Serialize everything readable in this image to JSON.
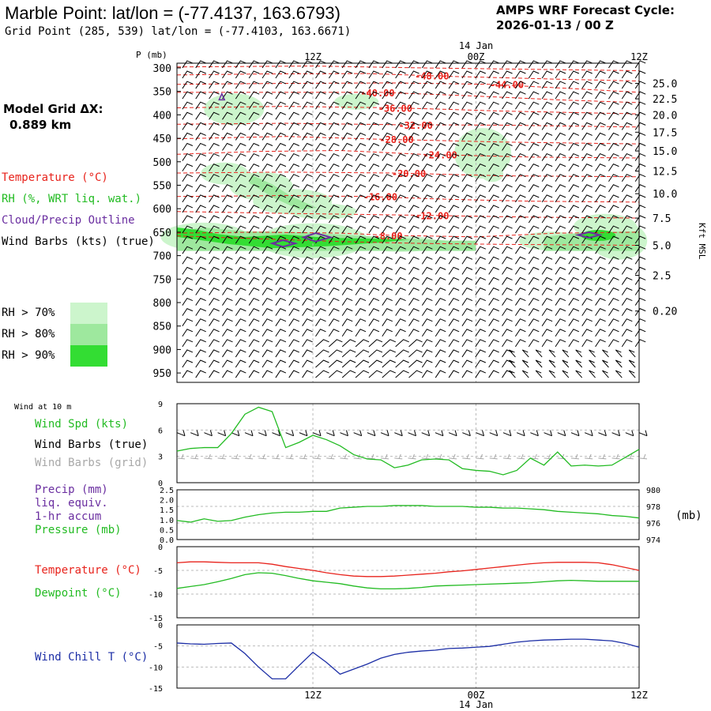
{
  "header": {
    "title": "Marble Point:  lat/lon = (-77.4137, 163.6793)",
    "subtitle": "Grid Point (285, 539) lat/lon = (-77.4103, 163.6671)",
    "cycle_line1": "AMPS WRF Forecast Cycle:",
    "cycle_line2": "2026-01-13 / 00  Z",
    "model_grid_line1": "Model Grid ΔX:",
    "model_grid_line2": "0.889 km"
  },
  "legend": {
    "temperature": "Temperature (°C)",
    "rh": "RH (%, WRT liq. wat.)",
    "cloud": "Cloud/Precip Outline",
    "barbs": "Wind Barbs (kts) (true)",
    "rh70": "RH > 70%",
    "rh80": "RH > 80%",
    "rh90": "RH > 90%",
    "wind10m": "Wind at 10 m",
    "wind_spd": "Wind Spd (kts)",
    "wind_barbs_true": "Wind Barbs (true)",
    "wind_barbs_grid": "Wind Barbs (grid)",
    "precip1": "Precip (mm)",
    "precip2": "liq. equiv.",
    "precip3": "1-hr accum",
    "pressure": "Pressure (mb)",
    "temp2m": "Temperature (°C)",
    "dewpoint": "Dewpoint (°C)",
    "windchill": "Wind Chill T (°C)"
  },
  "colors": {
    "temperature": "#e8231c",
    "rh": "#22bb22",
    "cloud": "#6a2ea0",
    "grid_barbs": "#a8a8a8",
    "windchill": "#1c2ea6",
    "rh70": "#ccf5cc",
    "rh80": "#9ee89e",
    "rh90": "#33dd33"
  },
  "chart_data": [
    {
      "type": "contour",
      "name": "cross-section",
      "y_title": "P (mb)",
      "right_axis_title": "Kft MSL",
      "pressure_ticks": [
        300,
        350,
        400,
        450,
        500,
        550,
        600,
        650,
        700,
        750,
        800,
        850,
        900,
        950
      ],
      "kft_ticks": [
        {
          "label": "25.0",
          "p": 333
        },
        {
          "label": "22.5",
          "p": 366
        },
        {
          "label": "20.0",
          "p": 400
        },
        {
          "label": "17.5",
          "p": 437
        },
        {
          "label": "15.0",
          "p": 477
        },
        {
          "label": "12.5",
          "p": 520
        },
        {
          "label": "10.0",
          "p": 568
        },
        {
          "label": "7.5",
          "p": 620
        },
        {
          "label": "5.0",
          "p": 678
        },
        {
          "label": "2.5",
          "p": 742
        },
        {
          "label": "0.20",
          "p": 818
        }
      ],
      "x_top_labels": [
        {
          "label": "12Z",
          "t": 12
        },
        {
          "label": "14 Jan",
          "t": 24,
          "upper": true
        },
        {
          "label": "00Z",
          "t": 24
        },
        {
          "label": "12Z",
          "t": 36
        }
      ],
      "temperature_labels": [
        {
          "label": "-48.00",
          "t": 19.5,
          "p": 316
        },
        {
          "label": "-44.00",
          "t": 25.0,
          "p": 335
        },
        {
          "label": "-40.00",
          "t": 15.5,
          "p": 352
        },
        {
          "label": "-36.00",
          "t": 16.8,
          "p": 385
        },
        {
          "label": "-32.00",
          "t": 18.3,
          "p": 421
        },
        {
          "label": "-28.00",
          "t": 16.9,
          "p": 452
        },
        {
          "label": "-24.00",
          "t": 20.1,
          "p": 484
        },
        {
          "label": "-20.00",
          "t": 17.8,
          "p": 524
        },
        {
          "label": "-16.00",
          "t": 15.7,
          "p": 574
        },
        {
          "label": "-12.00",
          "t": 19.5,
          "p": 614
        },
        {
          "label": "-8.00",
          "t": 16.5,
          "p": 657
        }
      ]
    },
    {
      "type": "line",
      "name": "wind-speed-10m",
      "ylim": [
        0,
        9
      ],
      "yticks": [
        0,
        3,
        6,
        9
      ],
      "x": [
        2,
        3,
        4,
        5,
        6,
        7,
        8,
        9,
        10,
        11,
        12,
        13,
        14,
        15,
        16,
        17,
        18,
        19,
        20,
        21,
        22,
        23,
        24,
        25,
        26,
        27,
        28,
        29,
        30,
        31,
        32,
        33,
        34,
        35,
        36
      ],
      "wind_speed": [
        3.6,
        3.9,
        4.0,
        4.0,
        5.6,
        7.8,
        8.6,
        8.1,
        4.0,
        4.6,
        5.4,
        4.9,
        4.2,
        3.2,
        2.7,
        2.6,
        1.7,
        2.0,
        2.6,
        2.7,
        2.6,
        1.6,
        1.4,
        1.3,
        0.9,
        1.4,
        2.8,
        2.0,
        3.5,
        1.9,
        2.0,
        1.9,
        2.0,
        2.9,
        3.8
      ]
    },
    {
      "type": "line",
      "name": "pressure-precip",
      "ylim_precip": [
        0,
        2.5
      ],
      "precip_ticks": [
        "0.0",
        "0.5",
        "1.0",
        "1.5",
        "2.0",
        "2.5"
      ],
      "ylim_pressure": [
        974,
        980
      ],
      "pressure_ticks": [
        974,
        976,
        978,
        980
      ],
      "x": [
        2,
        3,
        4,
        5,
        6,
        7,
        8,
        9,
        10,
        11,
        12,
        13,
        14,
        15,
        16,
        17,
        18,
        19,
        20,
        21,
        22,
        23,
        24,
        25,
        26,
        27,
        28,
        29,
        30,
        31,
        32,
        33,
        34,
        35,
        36
      ],
      "pressure": [
        976.3,
        976.1,
        976.5,
        976.2,
        976.3,
        976.7,
        977.0,
        977.2,
        977.3,
        977.3,
        977.4,
        977.4,
        977.8,
        977.9,
        978.0,
        978.0,
        978.1,
        978.1,
        978.1,
        978.0,
        978.0,
        978.0,
        977.9,
        977.9,
        977.8,
        977.8,
        977.7,
        977.6,
        977.4,
        977.3,
        977.2,
        977.1,
        976.9,
        976.8,
        976.6
      ]
    },
    {
      "type": "line",
      "name": "temperature-dewpoint",
      "ylim": [
        -15,
        0
      ],
      "yticks": [
        -15,
        -10,
        -5,
        0
      ],
      "x": [
        2,
        3,
        4,
        5,
        6,
        7,
        8,
        9,
        10,
        11,
        12,
        13,
        14,
        15,
        16,
        17,
        18,
        19,
        20,
        21,
        22,
        23,
        24,
        25,
        26,
        27,
        28,
        29,
        30,
        31,
        32,
        33,
        34,
        35,
        36
      ],
      "temperature": [
        -3.4,
        -3.2,
        -3.2,
        -3.3,
        -3.4,
        -3.4,
        -3.4,
        -3.7,
        -4.2,
        -4.6,
        -5.0,
        -5.5,
        -5.9,
        -6.2,
        -6.3,
        -6.3,
        -6.2,
        -6.0,
        -5.8,
        -5.6,
        -5.3,
        -5.1,
        -4.8,
        -4.5,
        -4.2,
        -3.9,
        -3.6,
        -3.4,
        -3.3,
        -3.3,
        -3.3,
        -3.4,
        -3.8,
        -4.4,
        -5.0
      ],
      "dewpoint": [
        -8.8,
        -8.4,
        -8.0,
        -7.4,
        -6.7,
        -5.9,
        -5.5,
        -5.6,
        -6.1,
        -6.7,
        -7.2,
        -7.5,
        -7.8,
        -8.3,
        -8.7,
        -8.9,
        -8.9,
        -8.8,
        -8.6,
        -8.3,
        -8.2,
        -8.1,
        -8.0,
        -7.9,
        -7.8,
        -7.7,
        -7.6,
        -7.4,
        -7.2,
        -7.1,
        -7.2,
        -7.3,
        -7.3,
        -7.3,
        -7.3
      ]
    },
    {
      "type": "line",
      "name": "wind-chill",
      "ylim": [
        -15,
        0
      ],
      "yticks": [
        -15,
        -10,
        -5,
        0
      ],
      "x_bottom_labels": [
        {
          "label": "12Z",
          "t": 12
        },
        {
          "label": "00Z",
          "t": 24
        },
        {
          "label": "14 Jan",
          "t": 24,
          "lower": true
        },
        {
          "label": "12Z",
          "t": 36
        }
      ],
      "x": [
        2,
        3,
        4,
        5,
        6,
        7,
        8,
        9,
        10,
        11,
        12,
        13,
        14,
        15,
        16,
        17,
        18,
        19,
        20,
        21,
        22,
        23,
        24,
        25,
        26,
        27,
        28,
        29,
        30,
        31,
        32,
        33,
        34,
        35,
        36
      ],
      "wind_chill": [
        -4.3,
        -4.5,
        -4.6,
        -4.4,
        -4.3,
        -6.8,
        -10.0,
        -12.8,
        -12.8,
        -9.6,
        -6.5,
        -8.9,
        -11.7,
        -10.5,
        -9.3,
        -7.9,
        -7.0,
        -6.5,
        -6.2,
        -6.0,
        -5.6,
        -5.5,
        -5.3,
        -5.1,
        -4.6,
        -4.1,
        -3.8,
        -3.6,
        -3.5,
        -3.4,
        -3.4,
        -3.6,
        -3.8,
        -4.4,
        -5.3
      ]
    }
  ]
}
